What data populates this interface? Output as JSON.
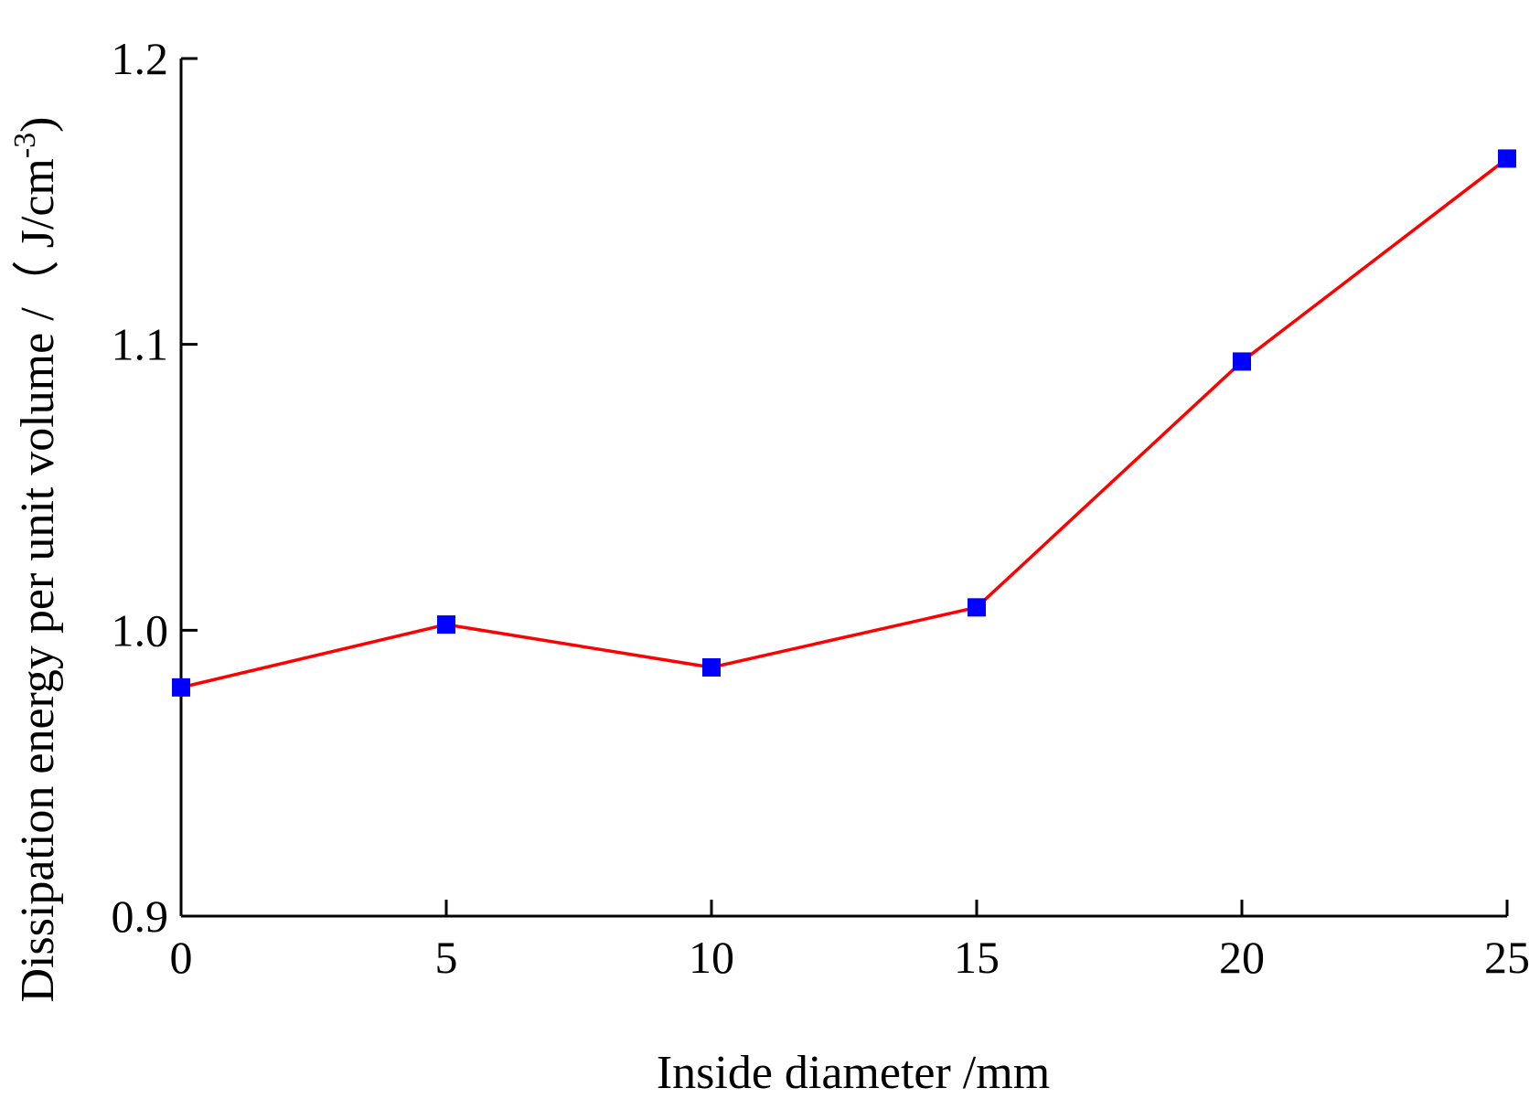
{
  "chart_data": {
    "type": "line",
    "title": "",
    "xlabel": "Inside diameter /mm",
    "ylabel": {
      "main": "Dissipation energy per unit volume /（ J/cm",
      "superscript": "-3",
      "close": ")"
    },
    "x": [
      0,
      5,
      10,
      15,
      20,
      25
    ],
    "series": [
      {
        "values": [
          0.98,
          1.002,
          0.987,
          1.008,
          1.094,
          1.165
        ],
        "line_color": "#ff0000",
        "marker_color": "#0000ff",
        "marker": "square"
      }
    ],
    "xlim": [
      0,
      25
    ],
    "ylim": [
      0.9,
      1.2
    ],
    "xticks": [
      0,
      5,
      10,
      15,
      20,
      25
    ],
    "xtick_labels": [
      "0",
      "5",
      "10",
      "15",
      "20",
      "25"
    ],
    "yticks": [
      0.9,
      1.0,
      1.1,
      1.2
    ],
    "ytick_labels": [
      "0.9",
      "1.0",
      "1.1",
      "1.2"
    ],
    "grid": false,
    "legend": "none",
    "axis_color": "#000000"
  }
}
